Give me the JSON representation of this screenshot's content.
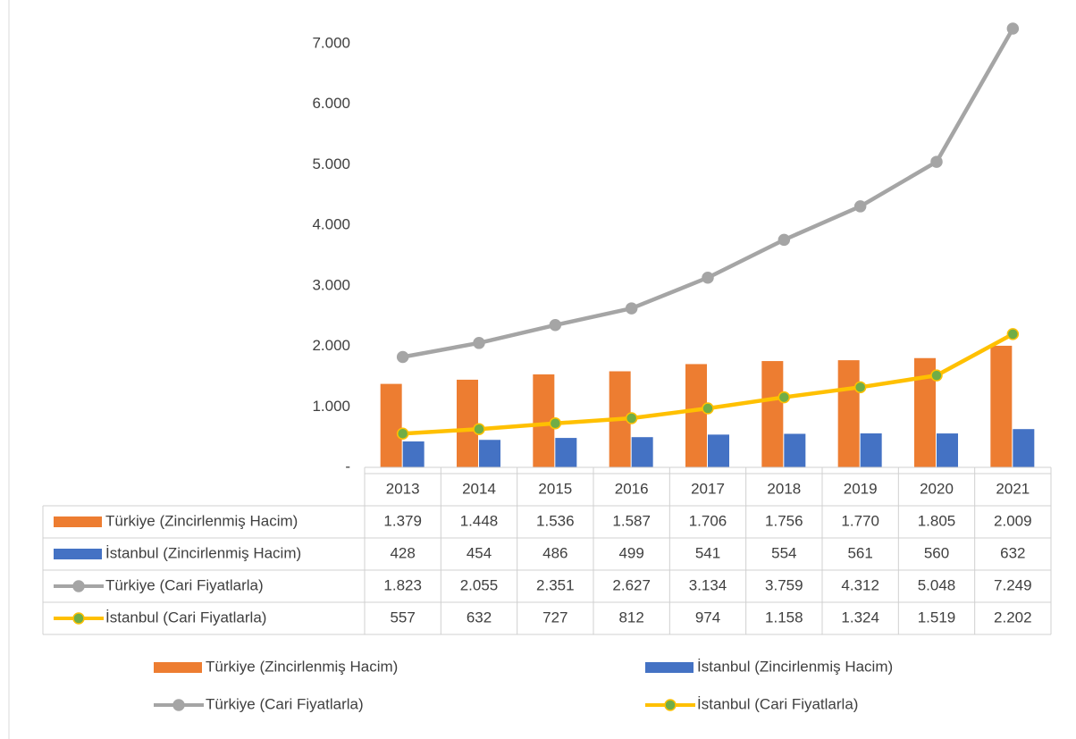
{
  "chart_data": {
    "type": "bar",
    "categories": [
      "2013",
      "2014",
      "2015",
      "2016",
      "2017",
      "2018",
      "2019",
      "2020",
      "2021"
    ],
    "series": [
      {
        "name": "Türkiye (Zincirlenmiş Hacim)",
        "type": "bar",
        "color": "#ed7d31",
        "values": [
          1379,
          1448,
          1536,
          1587,
          1706,
          1756,
          1770,
          1805,
          2009
        ],
        "value_labels": [
          "1.379",
          "1.448",
          "1.536",
          "1.587",
          "1.706",
          "1.756",
          "1.770",
          "1.805",
          "2.009"
        ]
      },
      {
        "name": "İstanbul (Zincirlenmiş Hacim)",
        "type": "bar",
        "color": "#4472c4",
        "values": [
          428,
          454,
          486,
          499,
          541,
          554,
          561,
          560,
          632
        ]
      },
      {
        "name": "Türkiye (Cari Fiyatlarla)",
        "type": "line",
        "color": "#a5a5a5",
        "marker_color": "#a5a5a5",
        "values": [
          1823,
          2055,
          2351,
          2627,
          3134,
          3759,
          4312,
          5048,
          7249
        ],
        "value_labels": [
          "1.823",
          "2.055",
          "2.351",
          "2.627",
          "3.134",
          "3.759",
          "4.312",
          "5.048",
          "7.249"
        ]
      },
      {
        "name": "İstanbul (Cari Fiyatlarla)",
        "type": "line",
        "color": "#ffc000",
        "marker_color": "#70ad47",
        "values": [
          557,
          632,
          727,
          812,
          974,
          1158,
          1324,
          1519,
          2202
        ],
        "value_labels": [
          "557",
          "632",
          "727",
          "812",
          "974",
          "1.158",
          "1.324",
          "1.519",
          "2.202"
        ]
      }
    ],
    "ylim": [
      0,
      7500
    ],
    "yticks": [
      {
        "value": 0,
        "label": "-"
      },
      {
        "value": 1000,
        "label": "1.000"
      },
      {
        "value": 2000,
        "label": "2.000"
      },
      {
        "value": 3000,
        "label": "3.000"
      },
      {
        "value": 4000,
        "label": "4.000"
      },
      {
        "value": 5000,
        "label": "5.000"
      },
      {
        "value": 6000,
        "label": "6.000"
      },
      {
        "value": 7000,
        "label": "7.000"
      }
    ],
    "grid": false,
    "data_table": true,
    "legend": "bottom"
  }
}
